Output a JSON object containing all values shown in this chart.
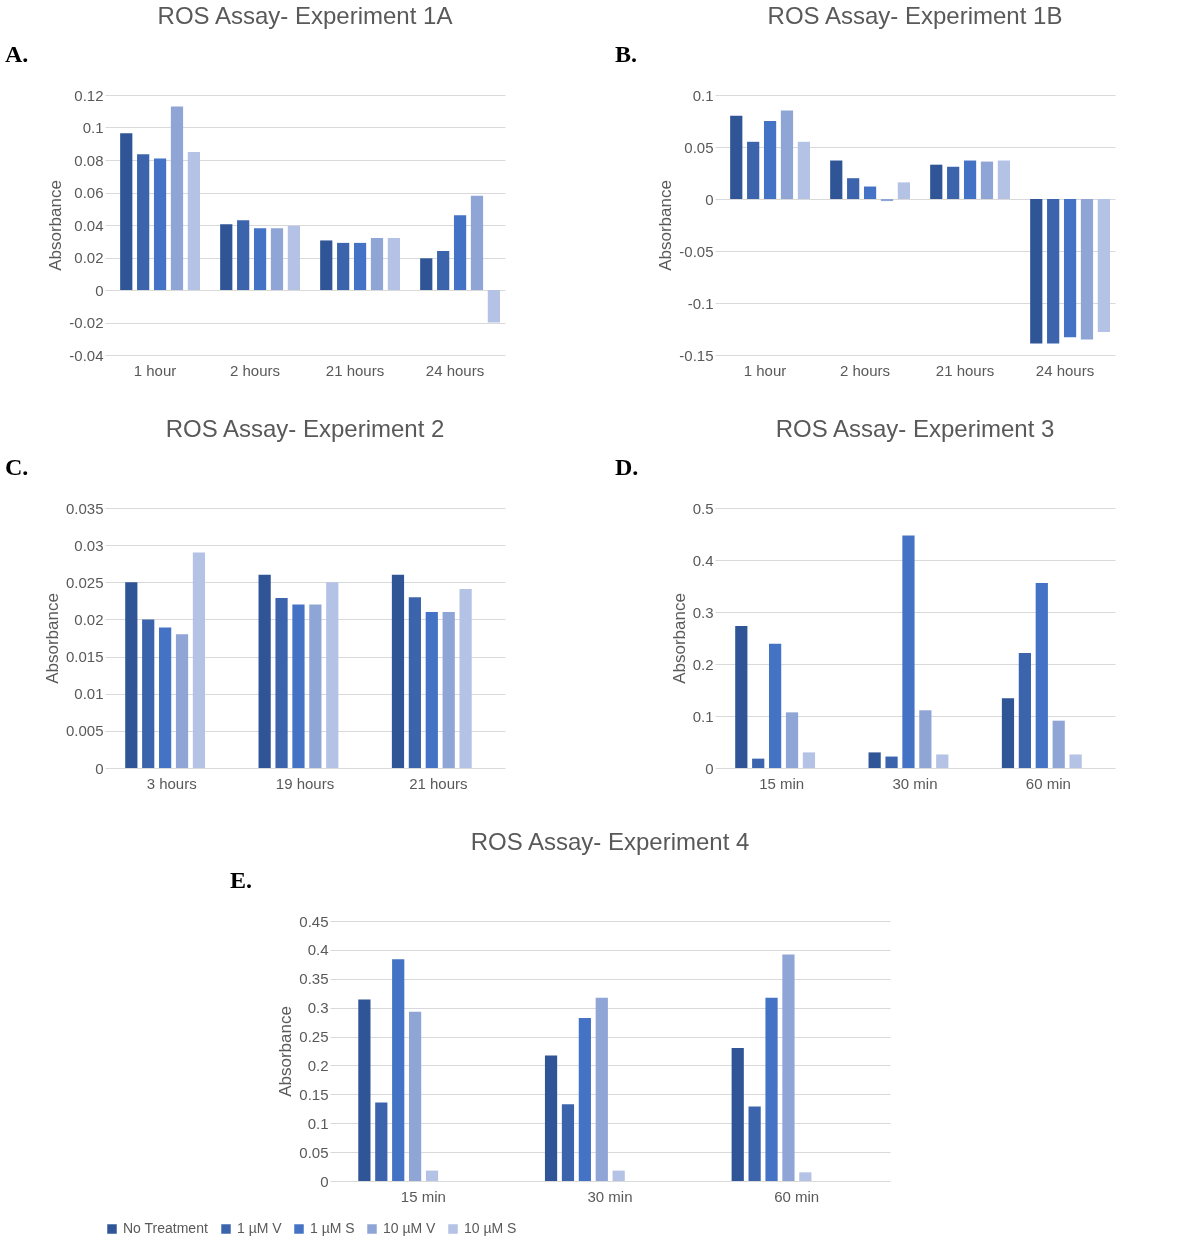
{
  "chart_data": [
    {
      "type": "bar",
      "title": "ROS Assay- Experiment 1A",
      "ylabel": "Absorbance",
      "annotations": [
        "A."
      ],
      "categories": [
        "1 hour",
        "2 hours",
        "21 hours",
        "24 hours"
      ],
      "series": [
        {
          "name": "No Treatment",
          "color": "#2f5597",
          "values": [
            0.0965,
            0.0405,
            0.0305,
            0.0195
          ]
        },
        {
          "name": "1 µM V",
          "color": "#3b64ad",
          "values": [
            0.0835,
            0.043,
            0.029,
            0.024
          ]
        },
        {
          "name": "1 µM S",
          "color": "#4472c4",
          "values": [
            0.081,
            0.038,
            0.029,
            0.046
          ]
        },
        {
          "name": "10 µM V",
          "color": "#8fa5d6",
          "values": [
            0.113,
            0.038,
            0.032,
            0.058
          ]
        },
        {
          "name": "10 µM S",
          "color": "#b4c2e6",
          "values": [
            0.085,
            0.0395,
            0.032,
            -0.02
          ]
        }
      ],
      "ylim": [
        -0.04,
        0.12
      ],
      "yticks": [
        -0.04,
        -0.02,
        0,
        0.02,
        0.04,
        0.06,
        0.08,
        0.1,
        0.12
      ],
      "grid": true,
      "legend": "bottom"
    },
    {
      "type": "bar",
      "title": "ROS Assay- Experiment 1B",
      "ylabel": "Absorbance",
      "annotations": [
        "B."
      ],
      "categories": [
        "1 hour",
        "2 hours",
        "21 hours",
        "24 hours"
      ],
      "series": [
        {
          "name": "No Treatment",
          "color": "#2f5597",
          "values": [
            0.08,
            0.037,
            0.033,
            -0.139
          ]
        },
        {
          "name": "1 µM V",
          "color": "#3b64ad",
          "values": [
            0.055,
            0.02,
            0.031,
            -0.139
          ]
        },
        {
          "name": "1 µM S",
          "color": "#4472c4",
          "values": [
            0.075,
            0.012,
            0.037,
            -0.133
          ]
        },
        {
          "name": "10 µM V",
          "color": "#8fa5d6",
          "values": [
            0.085,
            -0.002,
            0.036,
            -0.135
          ]
        },
        {
          "name": "10 µM S",
          "color": "#b4c2e6",
          "values": [
            0.055,
            0.016,
            0.037,
            -0.128
          ]
        }
      ],
      "ylim": [
        -0.15,
        0.1
      ],
      "yticks": [
        -0.15,
        -0.1,
        -0.05,
        0,
        0.05,
        0.1
      ],
      "grid": true,
      "legend": "bottom"
    },
    {
      "type": "bar",
      "title": "ROS Assay- Experiment 2",
      "ylabel": "Absorbance",
      "annotations": [
        "C."
      ],
      "categories": [
        "3 hours",
        "19 hours",
        "21 hours"
      ],
      "series": [
        {
          "name": "No Treatment",
          "color": "#2f5597",
          "values": [
            0.025,
            0.026,
            0.026
          ]
        },
        {
          "name": "1 µM V",
          "color": "#3b64ad",
          "values": [
            0.02,
            0.0229,
            0.023
          ]
        },
        {
          "name": "1 µM S",
          "color": "#4472c4",
          "values": [
            0.0189,
            0.022,
            0.021
          ]
        },
        {
          "name": "10 µM V",
          "color": "#8fa5d6",
          "values": [
            0.018,
            0.022,
            0.021
          ]
        },
        {
          "name": "10 µM S",
          "color": "#b4c2e6",
          "values": [
            0.029,
            0.025,
            0.0241
          ]
        }
      ],
      "ylim": [
        0,
        0.035
      ],
      "yticks": [
        0,
        0.005,
        0.01,
        0.015,
        0.02,
        0.025,
        0.03,
        0.035
      ],
      "grid": true,
      "legend": "bottom"
    },
    {
      "type": "bar",
      "title": "ROS Assay- Experiment 3",
      "ylabel": "Absorbance",
      "annotations": [
        "D."
      ],
      "categories": [
        "15 min",
        "30 min",
        "60 min"
      ],
      "series": [
        {
          "name": "No Treatment",
          "color": "#2f5597",
          "values": [
            0.273,
            0.03,
            0.134
          ]
        },
        {
          "name": "1 µM V",
          "color": "#3b64ad",
          "values": [
            0.018,
            0.022,
            0.221
          ]
        },
        {
          "name": "1 µM S",
          "color": "#4472c4",
          "values": [
            0.239,
            0.447,
            0.356
          ]
        },
        {
          "name": "10 µM V",
          "color": "#8fa5d6",
          "values": [
            0.107,
            0.111,
            0.091
          ]
        },
        {
          "name": "10 µM S",
          "color": "#b4c2e6",
          "values": [
            0.03,
            0.026,
            0.026
          ]
        }
      ],
      "ylim": [
        0,
        0.5
      ],
      "yticks": [
        0,
        0.1,
        0.2,
        0.3,
        0.4,
        0.5
      ],
      "grid": true,
      "legend": "bottom"
    },
    {
      "type": "bar",
      "title": "ROS Assay- Experiment 4",
      "ylabel": "Absorbance",
      "annotations": [
        "E."
      ],
      "categories": [
        "15 min",
        "30 min",
        "60 min"
      ],
      "series": [
        {
          "name": "No Treatment",
          "color": "#2f5597",
          "values": [
            0.314,
            0.217,
            0.23
          ]
        },
        {
          "name": "1 µM V",
          "color": "#3b64ad",
          "values": [
            0.136,
            0.133,
            0.129
          ]
        },
        {
          "name": "1 µM S",
          "color": "#4472c4",
          "values": [
            0.384,
            0.282,
            0.317
          ]
        },
        {
          "name": "10 µM V",
          "color": "#8fa5d6",
          "values": [
            0.293,
            0.317,
            0.392
          ]
        },
        {
          "name": "10 µM S",
          "color": "#b4c2e6",
          "values": [
            0.018,
            0.018,
            0.015
          ]
        }
      ],
      "ylim": [
        0,
        0.45
      ],
      "yticks": [
        0,
        0.05,
        0.1,
        0.15,
        0.2,
        0.25,
        0.3,
        0.35,
        0.4,
        0.45
      ],
      "grid": true,
      "legend": "bottom"
    }
  ]
}
